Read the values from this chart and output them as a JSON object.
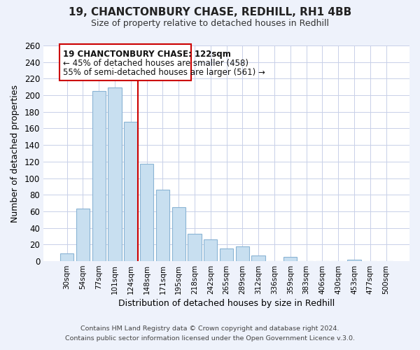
{
  "title": "19, CHANCTONBURY CHASE, REDHILL, RH1 4BB",
  "subtitle": "Size of property relative to detached houses in Redhill",
  "xlabel": "Distribution of detached houses by size in Redhill",
  "ylabel": "Number of detached properties",
  "bar_labels": [
    "30sqm",
    "54sqm",
    "77sqm",
    "101sqm",
    "124sqm",
    "148sqm",
    "171sqm",
    "195sqm",
    "218sqm",
    "242sqm",
    "265sqm",
    "289sqm",
    "312sqm",
    "336sqm",
    "359sqm",
    "383sqm",
    "406sqm",
    "430sqm",
    "453sqm",
    "477sqm",
    "500sqm"
  ],
  "bar_heights": [
    9,
    63,
    205,
    209,
    168,
    117,
    86,
    65,
    33,
    26,
    15,
    18,
    7,
    0,
    5,
    0,
    0,
    0,
    2,
    0,
    0
  ],
  "bar_color": "#c8dff0",
  "bar_edge_color": "#8ab4d4",
  "marker_index": 4,
  "marker_color": "#cc0000",
  "annotation_title": "19 CHANCTONBURY CHASE: 122sqm",
  "annotation_line1": "← 45% of detached houses are smaller (458)",
  "annotation_line2": "55% of semi-detached houses are larger (561) →",
  "ylim": [
    0,
    260
  ],
  "yticks": [
    0,
    20,
    40,
    60,
    80,
    100,
    120,
    140,
    160,
    180,
    200,
    220,
    240,
    260
  ],
  "footer1": "Contains HM Land Registry data © Crown copyright and database right 2024.",
  "footer2": "Contains public sector information licensed under the Open Government Licence v.3.0.",
  "bg_color": "#eef2fb",
  "plot_bg_color": "#ffffff",
  "grid_color": "#c8d0e8"
}
